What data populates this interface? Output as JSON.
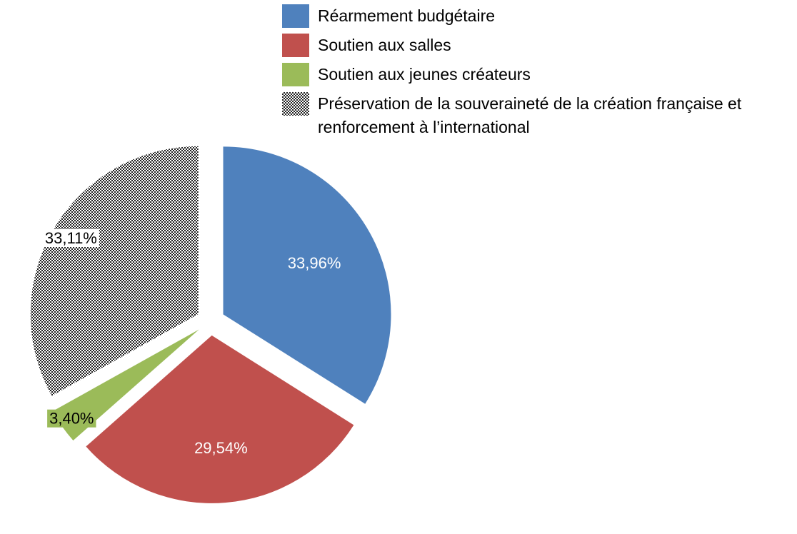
{
  "chart_data": {
    "type": "pie",
    "categories": [
      "Réarmement budgétaire",
      "Soutien aux salles",
      "Soutien aux jeunes créateurs",
      "Préservation de la souveraineté de la création française et renforcement à l’international"
    ],
    "values": [
      33.96,
      29.54,
      3.4,
      33.11
    ],
    "value_labels": [
      "33,96%",
      "29,54%",
      "3,40%",
      "33,11%"
    ],
    "colors": [
      "#4f81bd",
      "#c0504d",
      "#9bbb59",
      "#333333"
    ],
    "hatched": [
      false,
      false,
      false,
      true
    ],
    "exploded": true
  }
}
